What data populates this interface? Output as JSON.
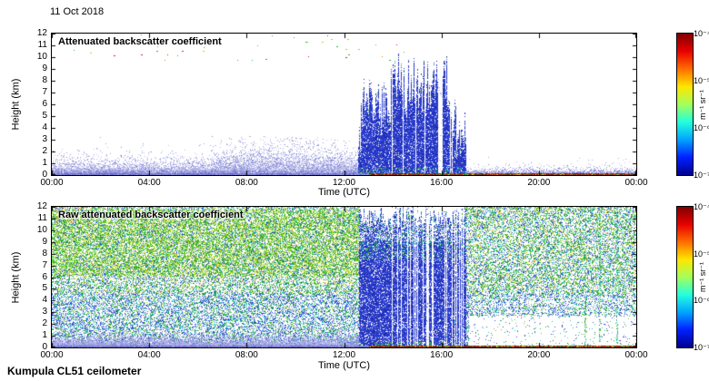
{
  "figure": {
    "date_label": "11 Oct 2018",
    "footer": "Kumpula CL51 ceilometer",
    "background_color": "#ffffff"
  },
  "chart_data": [
    {
      "type": "heatmap",
      "title": "Attenuated backscatter coefficient",
      "xlabel": "Time (UTC)",
      "ylabel": "Height (km)",
      "x_tick_labels": [
        "00:00",
        "04:00",
        "08:00",
        "12:00",
        "16:00",
        "20:00",
        "00:00"
      ],
      "x_tick_hours": [
        0,
        4,
        8,
        12,
        16,
        20,
        24
      ],
      "y_tick_labels": [
        "0",
        "1",
        "2",
        "3",
        "4",
        "5",
        "6",
        "7",
        "8",
        "9",
        "10",
        "11",
        "12"
      ],
      "y_ticks_km": [
        0,
        1,
        2,
        3,
        4,
        5,
        6,
        7,
        8,
        9,
        10,
        11,
        12
      ],
      "x_range": {
        "min_hour": 0,
        "max_hour": 24
      },
      "y_range_km": [
        0,
        12
      ],
      "grid": false,
      "colorbar": {
        "label": "m⁻¹ sr⁻¹",
        "tick_labels": [
          "10⁻⁴",
          "10⁻⁵",
          "10⁻⁶",
          "10⁻⁷"
        ],
        "scale": "log",
        "min": 1e-07,
        "max": 0.0001,
        "colormap": "jet",
        "gradient_stops_bottom_to_top": [
          "#00008f",
          "#0020ff",
          "#00a4ff",
          "#23ffdc",
          "#a4ff5b",
          "#ffe600",
          "#ff6d00",
          "#e80000",
          "#800000"
        ]
      },
      "features": {
        "aerosol_boundary_layer": {
          "hours": [
            0,
            12.55
          ],
          "top_km": 2,
          "approx_backscatter": "weak, ~1e-6.7 (pale blue)"
        },
        "precipitation": {
          "hours": [
            12.55,
            17.0
          ],
          "cloud_top_km_range": [
            4,
            10.4
          ],
          "approx_backscatter": "~1e-6.3 (blue)",
          "note": "dense vertical fall streaks, spiky tops 5-10 km, narrow clear gaps after 13.9 h"
        },
        "surface_return": {
          "hours": [
            13,
            24
          ],
          "approx_backscatter": "~1e-4.3 (dark red)",
          "note": "strong colored surface signal line"
        },
        "noise_specks": {
          "hours": [
            0.4,
            14.5
          ],
          "km": [
            9.6,
            11.8
          ],
          "count": 42,
          "note": "scattered green/yellow/orange noise pixels near panel top"
        },
        "clear_air": {
          "hours": [
            17,
            24
          ],
          "note": "near-clear, sparse weak returns below 1 km"
        }
      },
      "render_seed": 42
    },
    {
      "type": "heatmap",
      "title": "Raw attenuated backscatter coefficient",
      "xlabel": "Time (UTC)",
      "ylabel": "Height (km)",
      "x_tick_labels": [
        "00:00",
        "04:00",
        "08:00",
        "12:00",
        "16:00",
        "20:00",
        "00:00"
      ],
      "x_tick_hours": [
        0,
        4,
        8,
        12,
        16,
        20,
        24
      ],
      "y_tick_labels": [
        "0",
        "1",
        "2",
        "3",
        "4",
        "5",
        "6",
        "7",
        "8",
        "9",
        "10",
        "11",
        "12"
      ],
      "y_ticks_km": [
        0,
        1,
        2,
        3,
        4,
        5,
        6,
        7,
        8,
        9,
        10,
        11,
        12
      ],
      "x_range": {
        "min_hour": 0,
        "max_hour": 24
      },
      "y_range_km": [
        0,
        12
      ],
      "grid": false,
      "colorbar": {
        "label": "m⁻¹ sr⁻¹",
        "tick_labels": [
          "10⁻⁴",
          "10⁻⁵",
          "10⁻⁶",
          "10⁻⁷"
        ],
        "scale": "log",
        "min": 1e-07,
        "max": 0.0001,
        "colormap": "jet",
        "gradient_stops_bottom_to_top": [
          "#00008f",
          "#0020ff",
          "#00a4ff",
          "#23ffdc",
          "#a4ff5b",
          "#ffe600",
          "#ff6d00",
          "#e80000",
          "#800000"
        ]
      },
      "features": {
        "background_noise": {
          "coverage": "entire panel",
          "note": "green/cyan/blue raw-signal speckle over white"
        },
        "enhanced_noise": {
          "hours": [
            0,
            12.8
          ],
          "km": [
            6,
            11.7
          ],
          "note": "brighter yellow-green noise region aloft before the rain"
        },
        "aerosol_boundary_layer": {
          "hours": [
            0,
            12.6
          ],
          "top_km": 2,
          "note": "dense pale lavender band near surface"
        },
        "precipitation": {
          "hours": [
            12.6,
            17.0
          ],
          "note": "solid blue columns reaching ~12 km, white gap columns mostly after 13.9 h"
        },
        "attenuated_zone": {
          "hours": [
            17.1,
            24
          ],
          "top_km": 2.6,
          "note": "whitened low levels, signal extinguished below cloud"
        },
        "late_streaks": {
          "hours": [
            21.9,
            22.5,
            23.2
          ],
          "note": "full-height cyan/green noise streaks"
        },
        "warm_patch": {
          "hours": [
            0,
            1.4
          ],
          "km": [
            10.5,
            12
          ],
          "note": "orange/yellow pixels in upper-left corner"
        },
        "surface_return": {
          "hours": [
            13,
            24
          ],
          "note": "strong colored surface signal line"
        }
      },
      "render_seed": 1337
    }
  ]
}
